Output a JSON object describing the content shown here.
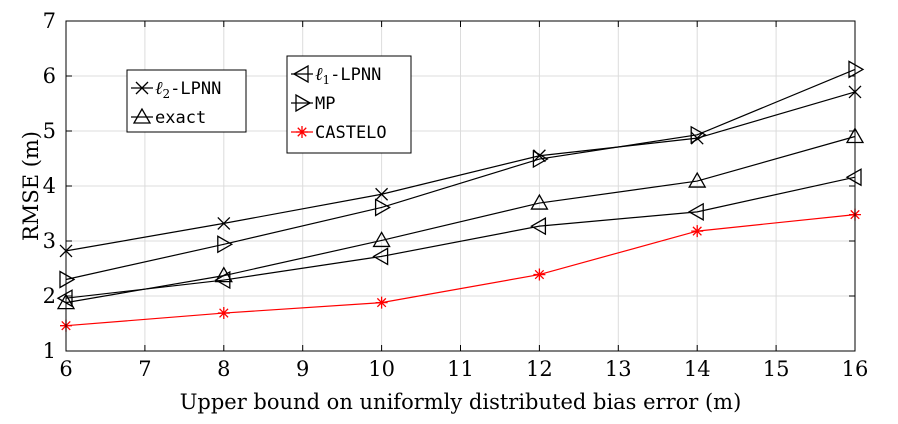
{
  "chart_data": {
    "type": "line",
    "title": "",
    "xlabel": "Upper bound on uniformly distributed bias error (m)",
    "ylabel": "RMSE (m)",
    "xlim": [
      6,
      16
    ],
    "ylim": [
      1,
      7
    ],
    "xticks": [
      6,
      7,
      8,
      9,
      10,
      11,
      12,
      13,
      14,
      15,
      16
    ],
    "yticks": [
      1,
      2,
      3,
      4,
      5,
      6,
      7
    ],
    "grid": true,
    "x": [
      6,
      8,
      10,
      12,
      14,
      16
    ],
    "series": [
      {
        "name": "ℓ2-LPNN",
        "label_prefix": "ℓ",
        "label_sub": "2",
        "label_suffix": "-LPNN",
        "marker": "x",
        "color": "#000000",
        "values": [
          2.82,
          3.32,
          3.85,
          4.55,
          4.87,
          5.71
        ]
      },
      {
        "name": "exact",
        "label_prefix": "",
        "label_sub": "",
        "label_suffix": "exact",
        "marker": "triangle-up",
        "color": "#000000",
        "values": [
          1.88,
          2.37,
          3.01,
          3.69,
          4.09,
          4.9
        ]
      },
      {
        "name": "ℓ1-LPNN",
        "label_prefix": "ℓ",
        "label_sub": "1",
        "label_suffix": "-LPNN",
        "marker": "triangle-left",
        "color": "#000000",
        "values": [
          1.96,
          2.29,
          2.72,
          3.27,
          3.53,
          4.16
        ]
      },
      {
        "name": "MP",
        "label_prefix": "",
        "label_sub": "",
        "label_suffix": "MP",
        "marker": "triangle-right",
        "color": "#000000",
        "values": [
          2.3,
          2.94,
          3.61,
          4.49,
          4.93,
          6.12
        ]
      },
      {
        "name": "CASTELO",
        "label_prefix": "",
        "label_sub": "",
        "label_suffix": "CASTELO",
        "marker": "asterisk",
        "color": "#ff0000",
        "values": [
          1.46,
          1.69,
          1.88,
          2.39,
          3.18,
          3.48
        ]
      }
    ],
    "legends": [
      {
        "placement": "upper-left",
        "series": [
          0,
          1
        ]
      },
      {
        "placement": "upper-center",
        "series": [
          2,
          3,
          4
        ]
      }
    ]
  }
}
